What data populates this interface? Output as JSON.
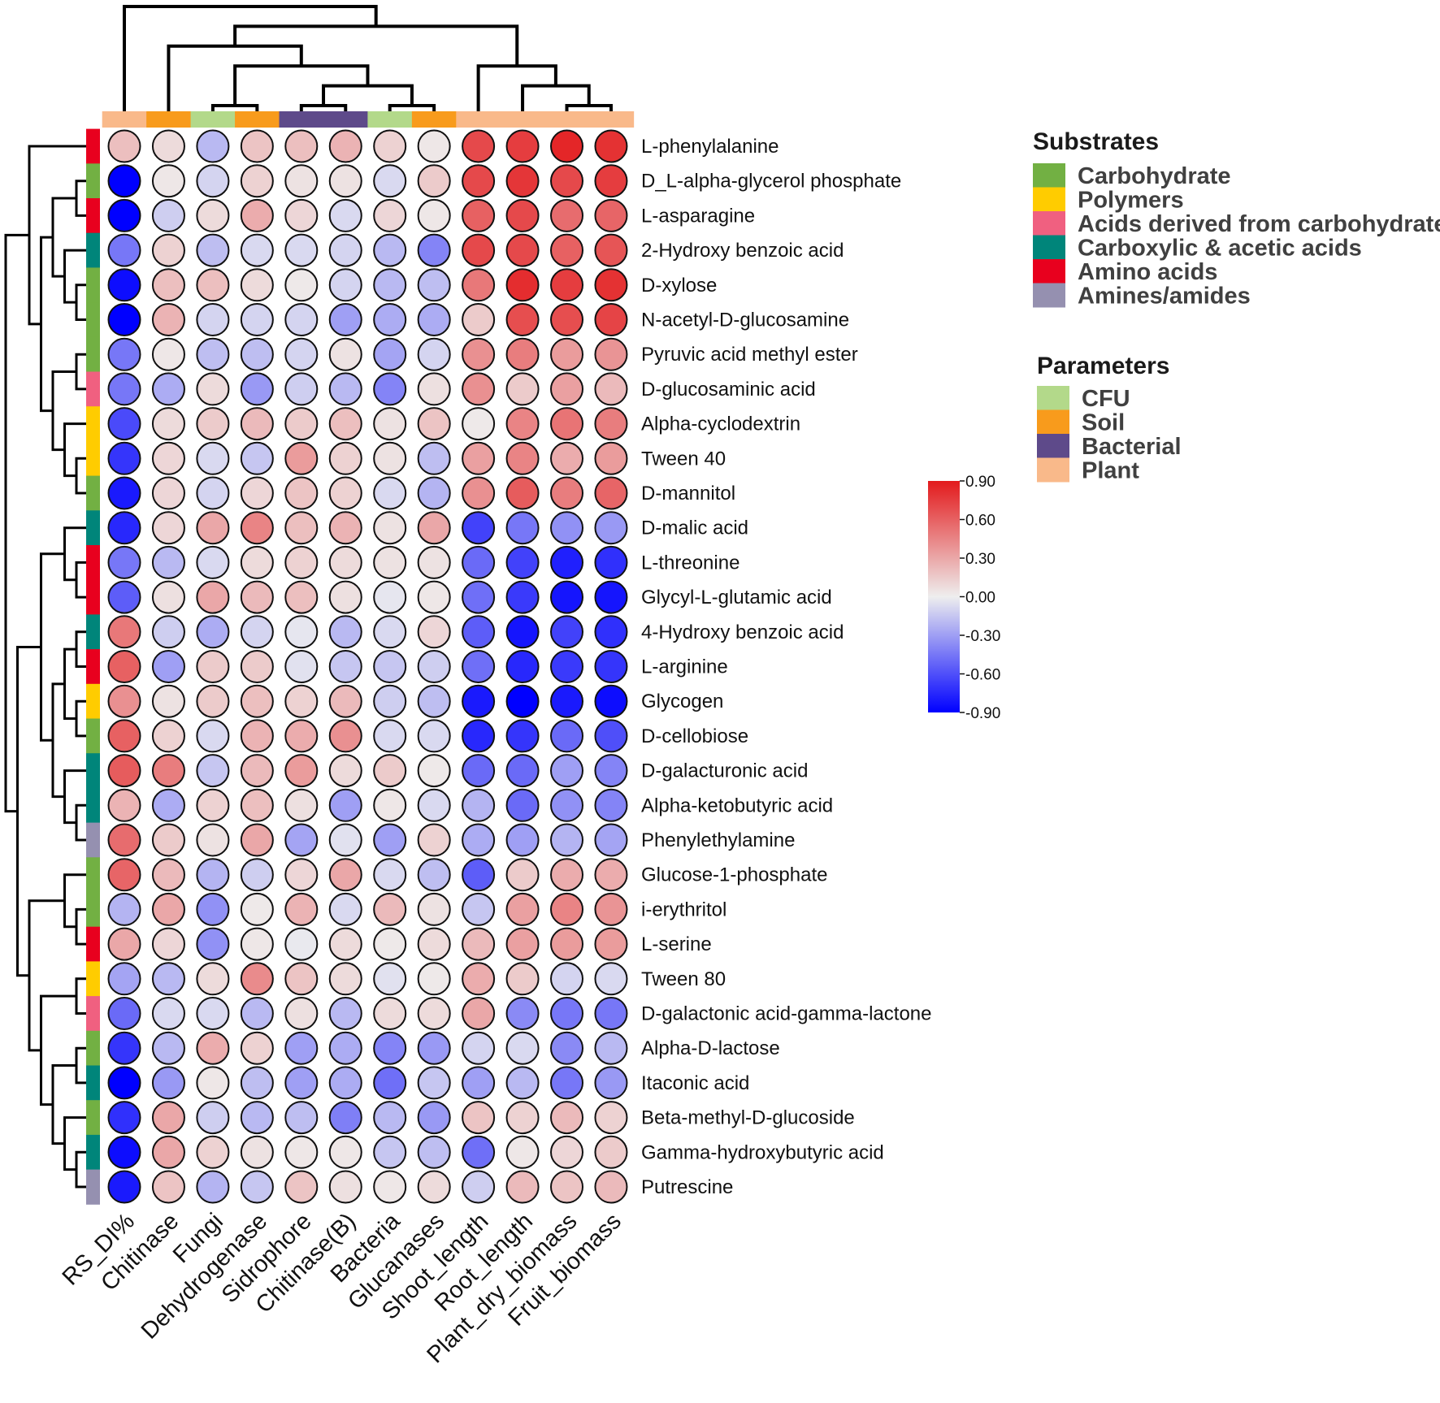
{
  "chart_data": {
    "type": "heatmap",
    "columns": [
      "RS_DI%",
      "Chitinase",
      "Fungi",
      "Dehydrogenase",
      "Sidrophore",
      "Chitinase(B)",
      "Bacteria",
      "Glucanases",
      "Shoot_length",
      "Root_length",
      "Plant_dry_biomass",
      "Fruit_biomass"
    ],
    "column_groups": [
      "Plant",
      "Soil",
      "CFU",
      "Soil",
      "Bacterial",
      "Bacterial",
      "CFU",
      "Soil",
      "Plant",
      "Plant",
      "Plant",
      "Plant"
    ],
    "rows": [
      "L-phenylalanine",
      "D_L-alpha-glycerol phosphate",
      "L-asparagine",
      "2-Hydroxy benzoic acid",
      "D-xylose",
      "N-acetyl-D-glucosamine",
      "Pyruvic acid methyl ester",
      "D-glucosaminic acid",
      "Alpha-cyclodextrin",
      "Tween 40",
      "D-mannitol",
      "D-malic acid",
      "L-threonine",
      "Glycyl-L-glutamic acid",
      "4-Hydroxy benzoic acid",
      "L-arginine",
      "Glycogen",
      "D-cellobiose",
      "D-galacturonic acid",
      "Alpha-ketobutyric acid",
      "Phenylethylamine",
      "Glucose-1-phosphate",
      "i-erythritol",
      "L-serine",
      "Tween 80",
      "D-galactonic acid-gamma-lactone",
      "Alpha-D-lactose",
      "Itaconic acid",
      "Beta-methyl-D-glucoside",
      "Gamma-hydroxybutyric acid",
      "Putrescine"
    ],
    "row_groups": [
      "Amino acids",
      "Carbohydrate",
      "Amino acids",
      "Carboxylic & acetic acids",
      "Carbohydrate",
      "Carbohydrate",
      "Carbohydrate",
      "Acids derived from carbohydrate",
      "Polymers",
      "Polymers",
      "Carbohydrate",
      "Carboxylic & acetic acids",
      "Amino acids",
      "Amino acids",
      "Carboxylic & acetic acids",
      "Amino acids",
      "Polymers",
      "Carbohydrate",
      "Carboxylic & acetic acids",
      "Carboxylic & acetic acids",
      "Amines/amides",
      "Carbohydrate",
      "Carbohydrate",
      "Amino acids",
      "Polymers",
      "Acids derived from carbohydrate",
      "Carbohydrate",
      "Carboxylic & acetic acids",
      "Carbohydrate",
      "Carboxylic & acetic acids",
      "Amines/amides"
    ],
    "values": [
      [
        0.2,
        0.08,
        -0.2,
        0.18,
        0.2,
        0.25,
        0.12,
        0.03,
        0.7,
        0.75,
        0.85,
        0.8
      ],
      [
        -0.9,
        0.03,
        -0.1,
        0.12,
        0.05,
        0.05,
        -0.08,
        0.15,
        0.7,
        0.78,
        0.7,
        0.75
      ],
      [
        -0.9,
        -0.12,
        0.08,
        0.28,
        0.1,
        -0.08,
        0.1,
        0.03,
        0.6,
        0.7,
        0.55,
        0.58
      ],
      [
        -0.45,
        0.12,
        -0.18,
        -0.08,
        -0.08,
        -0.1,
        -0.2,
        -0.4,
        0.7,
        0.7,
        0.6,
        0.65
      ],
      [
        -0.85,
        0.2,
        0.2,
        0.08,
        0.02,
        -0.1,
        -0.2,
        -0.18,
        0.5,
        0.82,
        0.75,
        0.8
      ],
      [
        -0.9,
        0.25,
        -0.1,
        -0.1,
        -0.1,
        -0.3,
        -0.25,
        -0.25,
        0.15,
        0.68,
        0.68,
        0.72
      ],
      [
        -0.45,
        0.03,
        -0.18,
        -0.18,
        -0.1,
        0.05,
        -0.28,
        -0.1,
        0.4,
        0.48,
        0.35,
        0.38
      ],
      [
        -0.45,
        -0.25,
        0.08,
        -0.32,
        -0.12,
        -0.2,
        -0.4,
        0.06,
        0.4,
        0.15,
        0.33,
        0.22
      ],
      [
        -0.62,
        0.08,
        0.15,
        0.22,
        0.15,
        0.2,
        0.05,
        0.18,
        0.02,
        0.45,
        0.52,
        0.48
      ],
      [
        -0.7,
        0.1,
        -0.08,
        -0.15,
        0.35,
        0.12,
        0.05,
        -0.18,
        0.33,
        0.45,
        0.28,
        0.35
      ],
      [
        -0.8,
        0.1,
        -0.1,
        0.1,
        0.18,
        0.12,
        -0.08,
        -0.22,
        0.4,
        0.62,
        0.48,
        0.58
      ],
      [
        -0.75,
        0.1,
        0.3,
        0.45,
        0.2,
        0.25,
        0.05,
        0.3,
        -0.65,
        -0.45,
        -0.35,
        -0.32
      ],
      [
        -0.45,
        -0.2,
        -0.08,
        0.08,
        0.12,
        0.08,
        0.05,
        0.05,
        -0.5,
        -0.65,
        -0.78,
        -0.72
      ],
      [
        -0.55,
        0.06,
        0.3,
        0.22,
        0.2,
        0.06,
        -0.03,
        0.03,
        -0.48,
        -0.68,
        -0.82,
        -0.82
      ],
      [
        0.5,
        -0.12,
        -0.25,
        -0.1,
        -0.03,
        -0.2,
        -0.08,
        0.1,
        -0.55,
        -0.82,
        -0.65,
        -0.72
      ],
      [
        0.6,
        -0.3,
        0.15,
        0.15,
        -0.05,
        -0.15,
        -0.15,
        -0.12,
        -0.48,
        -0.75,
        -0.68,
        -0.7
      ],
      [
        0.4,
        0.05,
        0.15,
        0.2,
        0.12,
        0.22,
        -0.12,
        -0.18,
        -0.8,
        -0.92,
        -0.8,
        -0.85
      ],
      [
        0.6,
        0.12,
        -0.08,
        0.25,
        0.28,
        0.4,
        -0.08,
        -0.08,
        -0.75,
        -0.7,
        -0.5,
        -0.6
      ],
      [
        0.62,
        0.48,
        -0.15,
        0.22,
        0.35,
        0.08,
        0.15,
        0.02,
        -0.5,
        -0.5,
        -0.3,
        -0.4
      ],
      [
        0.25,
        -0.25,
        0.12,
        0.2,
        0.06,
        -0.3,
        0.03,
        -0.08,
        -0.22,
        -0.5,
        -0.35,
        -0.4
      ],
      [
        0.55,
        0.15,
        0.05,
        0.3,
        -0.28,
        -0.05,
        -0.3,
        0.12,
        -0.25,
        -0.3,
        -0.22,
        -0.28
      ],
      [
        0.58,
        0.22,
        -0.22,
        -0.12,
        0.1,
        0.3,
        -0.08,
        -0.18,
        -0.55,
        0.15,
        0.28,
        0.28
      ],
      [
        -0.22,
        0.3,
        -0.35,
        0.02,
        0.25,
        -0.08,
        0.22,
        0.05,
        -0.15,
        0.33,
        0.45,
        0.38
      ],
      [
        0.3,
        0.1,
        -0.35,
        0.03,
        -0.02,
        0.08,
        0.02,
        0.08,
        0.22,
        0.33,
        0.35,
        0.35
      ],
      [
        -0.28,
        -0.2,
        0.08,
        0.42,
        0.18,
        0.08,
        -0.05,
        0.02,
        0.28,
        0.15,
        -0.1,
        -0.08
      ],
      [
        -0.5,
        -0.08,
        -0.08,
        -0.2,
        0.06,
        -0.2,
        0.08,
        0.08,
        0.3,
        -0.38,
        -0.45,
        -0.45
      ],
      [
        -0.7,
        -0.2,
        0.28,
        0.12,
        -0.3,
        -0.25,
        -0.4,
        -0.32,
        -0.1,
        -0.08,
        -0.38,
        -0.2
      ],
      [
        -0.92,
        -0.32,
        0.03,
        -0.18,
        -0.3,
        -0.25,
        -0.48,
        -0.15,
        -0.3,
        -0.2,
        -0.45,
        -0.32
      ],
      [
        -0.72,
        0.3,
        -0.12,
        -0.2,
        -0.18,
        -0.42,
        -0.2,
        -0.32,
        0.18,
        0.12,
        0.22,
        0.12
      ],
      [
        -0.85,
        0.3,
        0.12,
        0.05,
        0.03,
        0.03,
        -0.15,
        -0.18,
        -0.48,
        0.03,
        0.1,
        0.15
      ],
      [
        -0.8,
        0.18,
        -0.22,
        -0.15,
        0.18,
        0.06,
        0.03,
        0.08,
        -0.12,
        0.22,
        0.18,
        0.22
      ]
    ],
    "value_range": [
      -0.9,
      0.9
    ],
    "colorscale": {
      "low": "#0000ff",
      "mid": "#eeeeee",
      "high": "#e31a1c"
    },
    "colorbar_ticks": [
      "0.90",
      "0.60",
      "0.30",
      "0.00",
      "-0.30",
      "-0.60",
      "-0.90"
    ],
    "column_dendrogram": [
      0,
      [
        [
          1,
          [
            [
              2,
              3
            ],
            [
              [
                4,
                5
              ],
              [
                6,
                7
              ]
            ]
          ]
        ],
        [
          8,
          [
            9,
            [
              10,
              11
            ]
          ]
        ]
      ]
    ],
    "row_dendrogram": [
      [
        0,
        [
          [
            [
              1,
              2
            ],
            [
              3,
              [
                4,
                5
              ]
            ]
          ],
          [
            [
              6,
              7
            ],
            [
              8,
              [
                9,
                10
              ]
            ]
          ]
        ]
      ],
      [
        [
          [
            11,
            [
              12,
              13
            ]
          ],
          [
            [
              [
                14,
                15
              ],
              [
                16,
                17
              ]
            ],
            [
              18,
              [
                19,
                20
              ]
            ]
          ]
        ],
        [
          [
            21,
            [
              22,
              23
            ]
          ],
          [
            [
              24,
              25
            ],
            [
              [
                26,
                27
              ],
              [
                28,
                [
                  29,
                  30
                ]
              ]
            ]
          ]
        ]
      ]
    ],
    "legend": {
      "substrates": {
        "title": "Substrates",
        "items": [
          {
            "label": "Carbohydrate",
            "color": "#72b043"
          },
          {
            "label": "Polymers",
            "color": "#ffcc00"
          },
          {
            "label": "Acids derived from carbohydrate",
            "color": "#f06080"
          },
          {
            "label": "Carboxylic & acetic acids",
            "color": "#00857a"
          },
          {
            "label": "Amino acids",
            "color": "#e8001e"
          },
          {
            "label": "Amines/amides",
            "color": "#9590b0"
          }
        ]
      },
      "parameters": {
        "title": "Parameters",
        "items": [
          {
            "label": "CFU",
            "color": "#b3d98a"
          },
          {
            "label": "Soil",
            "color": "#f89b1c"
          },
          {
            "label": "Bacterial",
            "color": "#5e4a8a"
          },
          {
            "label": "Plant",
            "color": "#f9b98a"
          }
        ]
      }
    }
  }
}
